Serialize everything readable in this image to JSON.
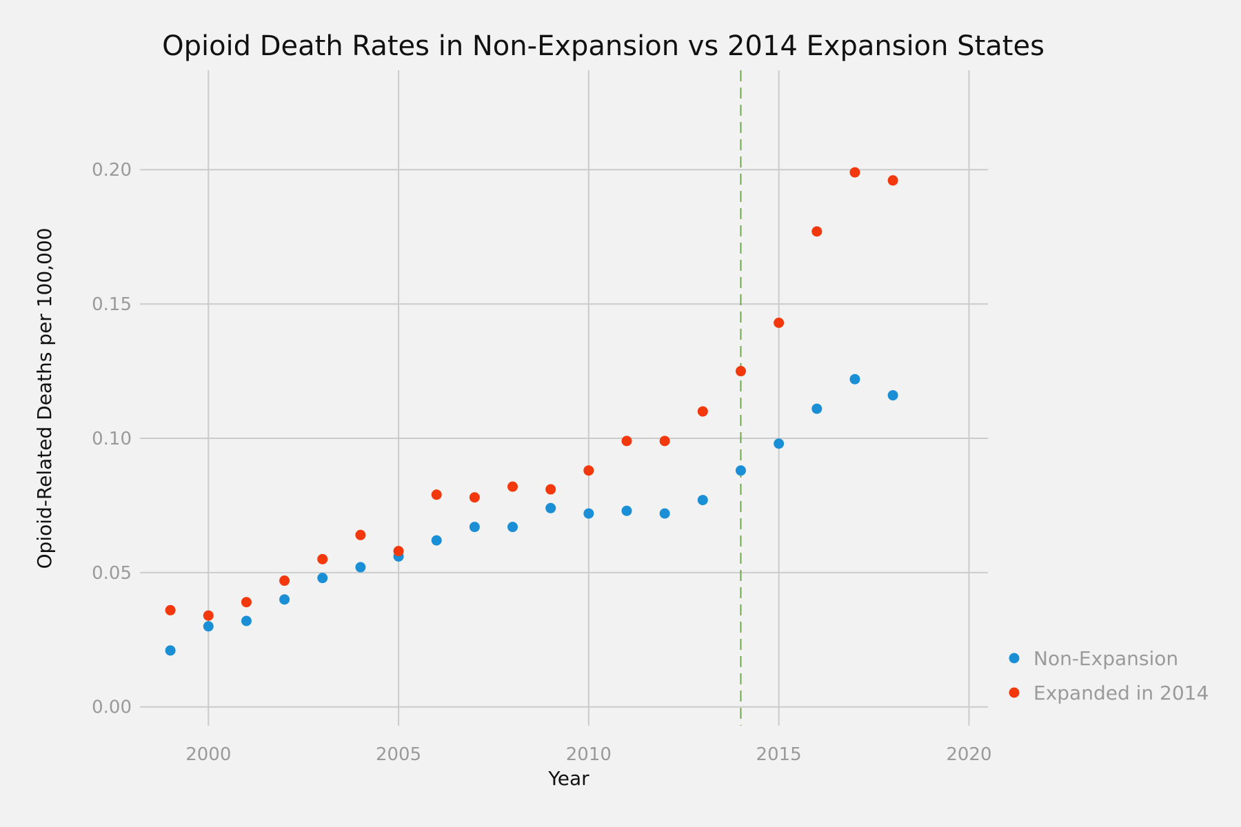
{
  "chart_data": {
    "type": "scatter",
    "title": "Opioid Death Rates in Non-Expansion vs 2014 Expansion States",
    "xlabel": "Year",
    "ylabel": "Opioid-Related Deaths per 100,000",
    "xlim": [
      1998.2,
      2020.5
    ],
    "ylim": [
      -0.007,
      0.237
    ],
    "xticks": [
      2000,
      2005,
      2010,
      2015,
      2020
    ],
    "yticks": [
      0.0,
      0.05,
      0.1,
      0.15,
      0.2
    ],
    "xtick_labels": [
      "2000",
      "2005",
      "2010",
      "2015",
      "2020"
    ],
    "ytick_labels": [
      "0.00",
      "0.05",
      "0.10",
      "0.15",
      "0.20"
    ],
    "grid": true,
    "legend_position": "bottom-right outside",
    "vline": {
      "x": 2014,
      "style": "dashed",
      "color": "#6fa84a"
    },
    "x": [
      1999,
      2000,
      2001,
      2002,
      2003,
      2004,
      2005,
      2006,
      2007,
      2008,
      2009,
      2010,
      2011,
      2012,
      2013,
      2014,
      2015,
      2016,
      2017,
      2018
    ],
    "series": [
      {
        "name": "Non-Expansion",
        "color": "#1a8fd6",
        "values": [
          0.021,
          0.03,
          0.032,
          0.04,
          0.048,
          0.052,
          0.056,
          0.062,
          0.067,
          0.067,
          0.074,
          0.072,
          0.073,
          0.072,
          0.077,
          0.088,
          0.098,
          0.111,
          0.122,
          0.116
        ]
      },
      {
        "name": "Expanded in 2014",
        "color": "#f2380c",
        "values": [
          0.036,
          0.034,
          0.039,
          0.047,
          0.055,
          0.064,
          0.058,
          0.079,
          0.078,
          0.082,
          0.081,
          0.088,
          0.099,
          0.099,
          0.11,
          0.125,
          0.143,
          0.177,
          0.199,
          0.196
        ]
      }
    ]
  }
}
